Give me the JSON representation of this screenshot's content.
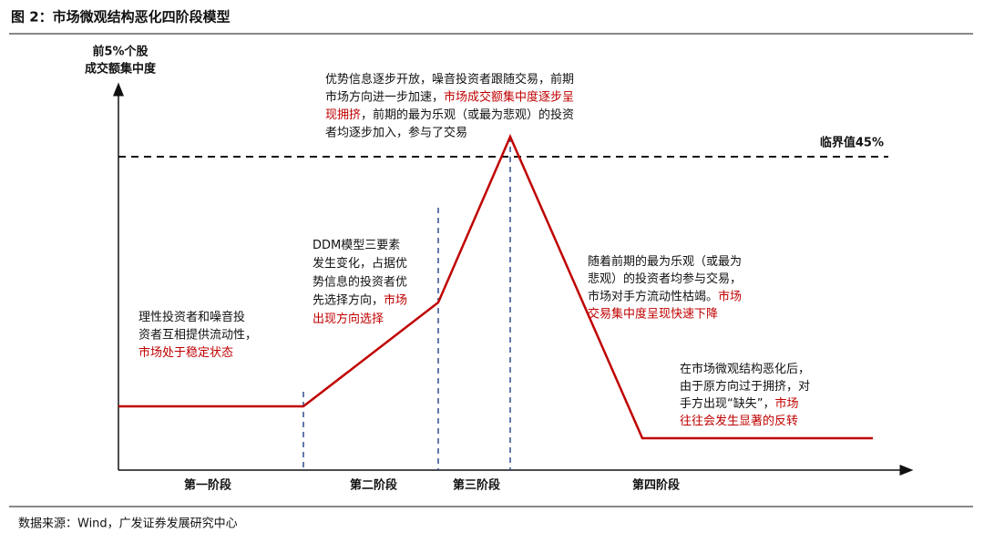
{
  "header": {
    "title": "图 2：市场微观结构恶化四阶段模型"
  },
  "axis": {
    "y_label": [
      "前5%个股",
      "成交额集中度"
    ]
  },
  "threshold": {
    "label": "临界值45%",
    "color": "#c00000"
  },
  "annotations": [
    [
      [
        {
          "text": "理性投资者和噪音投",
          "color": "#111111"
        }
      ],
      [
        {
          "text": "资者互相提供流动性，",
          "color": "#111111"
        }
      ],
      [
        {
          "text": "市场处于稳定状态",
          "color": "#c00000"
        }
      ]
    ],
    [
      [
        {
          "text": "DDM模型三要素",
          "color": "#111111"
        }
      ],
      [
        {
          "text": "发生变化，占据优",
          "color": "#111111"
        }
      ],
      [
        {
          "text": "势信息的投资者优",
          "color": "#111111"
        }
      ],
      [
        {
          "text": "先选择方向，",
          "color": "#111111"
        },
        {
          "text": "市场",
          "color": "#c00000"
        }
      ],
      [
        {
          "text": "出现方向选择",
          "color": "#c00000"
        }
      ]
    ],
    [
      [
        {
          "text": "优势信息逐步开放，噪音投资者跟随交易，前期",
          "color": "#111111"
        }
      ],
      [
        {
          "text": "市场方向进一步加速，",
          "color": "#111111"
        },
        {
          "text": "市场成交额集中度逐步呈",
          "color": "#c00000"
        }
      ],
      [
        {
          "text": "现拥挤",
          "color": "#c00000"
        },
        {
          "text": "，前期的最为乐观（或最为悲观）的投资",
          "color": "#111111"
        }
      ],
      [
        {
          "text": "者均逐步加入，参与了交易",
          "color": "#111111"
        }
      ]
    ],
    [
      [
        {
          "text": "随着前期的最为乐观（或最为",
          "color": "#111111"
        }
      ],
      [
        {
          "text": "悲观）的投资者均参与交易，",
          "color": "#111111"
        }
      ],
      [
        {
          "text": "市场对手方流动性枯竭。",
          "color": "#111111"
        },
        {
          "text": "市场",
          "color": "#c00000"
        }
      ],
      [
        {
          "text": "交易集中度呈现快速下降",
          "color": "#c00000"
        }
      ]
    ],
    [
      [
        {
          "text": "在市场微观结构恶化后，",
          "color": "#111111"
        }
      ],
      [
        {
          "text": "由于原方向过于拥挤，对",
          "color": "#111111"
        }
      ],
      [
        {
          "text": "手方出现“缺失”，",
          "color": "#111111"
        },
        {
          "text": "市场",
          "color": "#c00000"
        }
      ],
      [
        {
          "text": "往往会发生显著的反转",
          "color": "#c00000"
        }
      ]
    ]
  ],
  "phases": [
    "第一阶段",
    "第二阶段",
    "第三阶段",
    "第四阶段"
  ],
  "source": "数据来源：Wind，广发证券发展研究中心"
}
